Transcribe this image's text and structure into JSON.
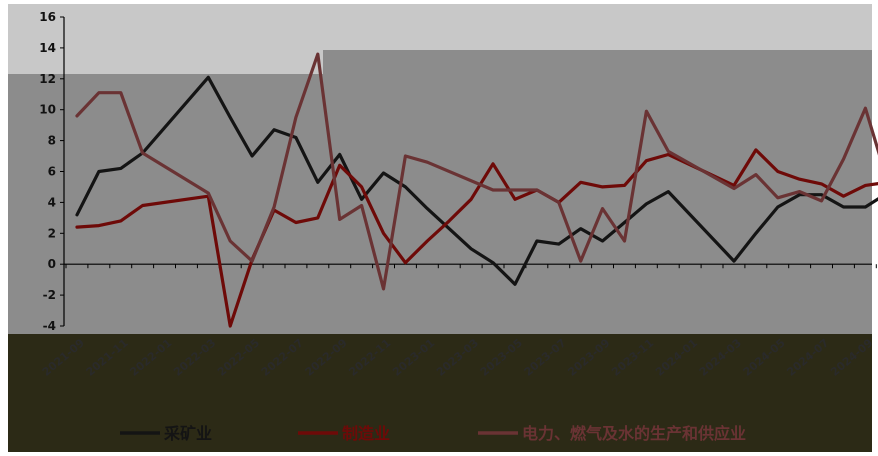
{
  "chart_data": {
    "type": "line",
    "title": "",
    "xlabel": "",
    "ylabel": "",
    "ylim": [
      -4,
      16
    ],
    "yticks": [
      -4,
      -2,
      0,
      2,
      4,
      6,
      8,
      10,
      12,
      14,
      16
    ],
    "grid": false,
    "legend_position": "bottom",
    "colors": {
      "plot_bg": "#8c8c8c",
      "plot_bg_light": "#c8c8c8",
      "bottom_band": "#2c2a16",
      "axis": "#000000",
      "series": [
        "#141414",
        "#6e0a08",
        "#6a3334"
      ]
    },
    "x": [
      "2021-09",
      "2021-10",
      "2021-11",
      "2021-12",
      "2022-01",
      "2022-02",
      "2022-03",
      "2022-04",
      "2022-05",
      "2022-06",
      "2022-07",
      "2022-08",
      "2022-09",
      "2022-10",
      "2022-11",
      "2022-12",
      "2023-01",
      "2023-02",
      "2023-03",
      "2023-04",
      "2023-05",
      "2023-06",
      "2023-07",
      "2023-08",
      "2023-09",
      "2023-10",
      "2023-11",
      "2023-12",
      "2024-01",
      "2024-02",
      "2024-03",
      "2024-04",
      "2024-05",
      "2024-06",
      "2024-07",
      "2024-08",
      "2024-09",
      "2024-10"
    ],
    "xtick_labels": [
      "2021-09",
      "2021-11",
      "2022-01",
      "2022-03",
      "2022-05",
      "2022-07",
      "2022-09",
      "2022-11",
      "2023-01",
      "2023-03",
      "2023-05",
      "2023-07",
      "2023-09",
      "2023-11",
      "2024-01",
      "2024-03",
      "2024-05",
      "2024-07",
      "2024-09"
    ],
    "series": [
      {
        "name": "采矿业",
        "values": [
          3.2,
          6.0,
          6.2,
          7.2,
          null,
          null,
          12.1,
          9.5,
          7.0,
          8.7,
          8.2,
          5.3,
          7.1,
          4.2,
          5.9,
          5.0,
          3.6,
          2.3,
          1.0,
          0.1,
          -1.3,
          1.5,
          1.3,
          2.3,
          1.5,
          2.7,
          3.9,
          4.7,
          null,
          null,
          0.2,
          2.0,
          3.7,
          4.5,
          4.5,
          3.7,
          3.7,
          4.6
        ]
      },
      {
        "name": "制造业",
        "values": [
          2.4,
          2.5,
          2.8,
          3.8,
          null,
          null,
          4.4,
          -4.0,
          0.3,
          3.5,
          2.7,
          3.0,
          6.4,
          5.0,
          2.0,
          0.1,
          1.5,
          2.8,
          4.2,
          6.5,
          4.2,
          4.8,
          4.0,
          5.3,
          5.0,
          5.1,
          6.7,
          7.1,
          null,
          null,
          5.1,
          7.4,
          6.0,
          5.5,
          5.2,
          4.4,
          5.1,
          5.3
        ]
      },
      {
        "name": "电力、燃气及水的生产和供应业",
        "values": [
          9.6,
          11.1,
          11.1,
          7.2,
          null,
          null,
          4.6,
          1.5,
          0.2,
          3.7,
          9.5,
          13.6,
          2.9,
          3.8,
          -1.6,
          7.0,
          6.6,
          null,
          null,
          4.8,
          4.8,
          4.8,
          4.0,
          0.2,
          3.6,
          1.5,
          9.9,
          7.3,
          null,
          null,
          4.9,
          5.8,
          4.3,
          4.7,
          4.1,
          6.8,
          10.1,
          5.4
        ]
      }
    ]
  }
}
